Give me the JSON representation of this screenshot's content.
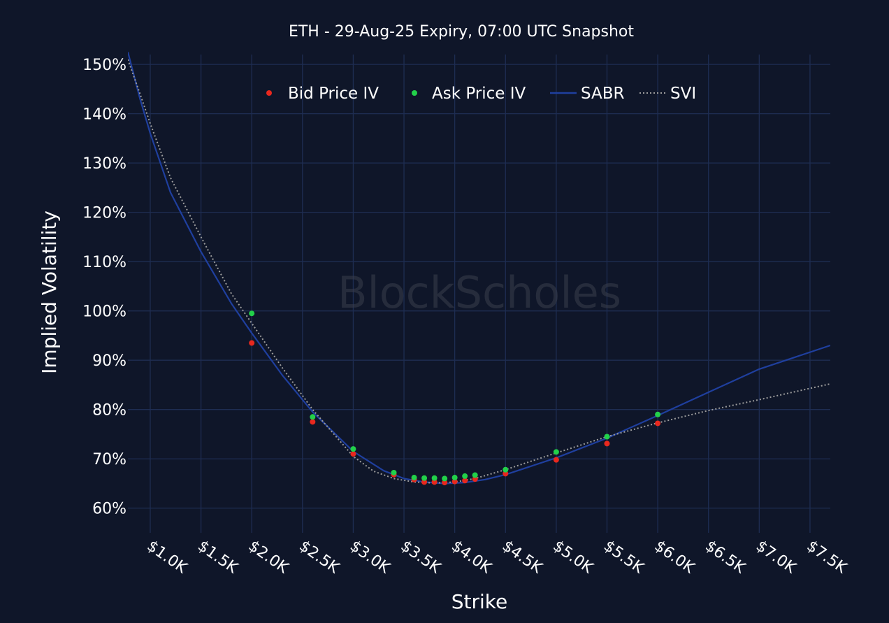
{
  "chart_data": {
    "type": "scatter",
    "title": "ETH - 29-Aug-25 Expiry, 07:00 UTC Snapshot",
    "xlabel": "Strike",
    "ylabel": "Implied Volatility",
    "xlim": [
      780,
      7700
    ],
    "ylim": [
      55,
      152
    ],
    "x_ticks": [
      1000,
      1500,
      2000,
      2500,
      3000,
      3500,
      4000,
      4500,
      5000,
      5500,
      6000,
      6500,
      7000,
      7500
    ],
    "x_tick_labels": [
      "$1.0K",
      "$1.5K",
      "$2.0K",
      "$2.5K",
      "$3.0K",
      "$3.5K",
      "$4.0K",
      "$4.5K",
      "$5.0K",
      "$5.5K",
      "$6.0K",
      "$6.5K",
      "$7.0K",
      "$7.5K"
    ],
    "y_ticks": [
      60,
      70,
      80,
      90,
      100,
      110,
      120,
      130,
      140,
      150
    ],
    "y_tick_labels": [
      "60%",
      "70%",
      "80%",
      "90%",
      "100%",
      "110%",
      "120%",
      "130%",
      "140%",
      "150%"
    ],
    "grid": true,
    "legend_position": "top-center",
    "watermark": "BlockScholes",
    "series": [
      {
        "name": "Bid Price IV",
        "kind": "scatter",
        "color": "#e8281e",
        "points": [
          [
            2000,
            93.5
          ],
          [
            2600,
            77.5
          ],
          [
            3000,
            71
          ],
          [
            3400,
            66.8
          ],
          [
            3600,
            65.8
          ],
          [
            3700,
            65.3
          ],
          [
            3800,
            65.3
          ],
          [
            3900,
            65.2
          ],
          [
            4000,
            65.4
          ],
          [
            4100,
            65.6
          ],
          [
            4200,
            65.9
          ],
          [
            4500,
            67
          ],
          [
            5000,
            69.8
          ],
          [
            5500,
            73.1
          ],
          [
            6000,
            77.2
          ]
        ]
      },
      {
        "name": "Ask Price IV",
        "kind": "scatter",
        "color": "#22d14a",
        "points": [
          [
            2000,
            99.5
          ],
          [
            2600,
            78.5
          ],
          [
            3000,
            72
          ],
          [
            3400,
            67.2
          ],
          [
            3600,
            66.2
          ],
          [
            3700,
            66.1
          ],
          [
            3800,
            66.1
          ],
          [
            3900,
            66
          ],
          [
            4000,
            66.2
          ],
          [
            4100,
            66.5
          ],
          [
            4200,
            66.7
          ],
          [
            4500,
            67.8
          ],
          [
            5000,
            71.4
          ],
          [
            5500,
            74.5
          ],
          [
            6000,
            79
          ]
        ]
      },
      {
        "name": "SABR",
        "kind": "line",
        "color": "#1f3f9e",
        "points": [
          [
            780,
            152.5
          ],
          [
            900,
            143
          ],
          [
            1000,
            136
          ],
          [
            1200,
            124
          ],
          [
            1500,
            112
          ],
          [
            1800,
            101.5
          ],
          [
            2000,
            95.5
          ],
          [
            2300,
            87
          ],
          [
            2600,
            79.5
          ],
          [
            3000,
            71.5
          ],
          [
            3300,
            67.6
          ],
          [
            3500,
            66
          ],
          [
            3700,
            65.3
          ],
          [
            3900,
            65
          ],
          [
            4100,
            65.2
          ],
          [
            4300,
            65.8
          ],
          [
            4500,
            66.8
          ],
          [
            5000,
            70.2
          ],
          [
            5500,
            74.2
          ],
          [
            6000,
            78.8
          ],
          [
            6500,
            83.5
          ],
          [
            7000,
            88.2
          ],
          [
            7700,
            93
          ]
        ]
      },
      {
        "name": "SVI",
        "kind": "line",
        "style": "dotted",
        "color": "#9c9c9c",
        "points": [
          [
            780,
            151
          ],
          [
            900,
            144
          ],
          [
            1000,
            138
          ],
          [
            1200,
            127
          ],
          [
            1500,
            115
          ],
          [
            1800,
            103.5
          ],
          [
            2000,
            97.5
          ],
          [
            2300,
            88.5
          ],
          [
            2600,
            80
          ],
          [
            3000,
            70.5
          ],
          [
            3200,
            67.5
          ],
          [
            3400,
            66
          ],
          [
            3600,
            65.3
          ],
          [
            3800,
            65.1
          ],
          [
            4000,
            65.3
          ],
          [
            4200,
            66
          ],
          [
            4500,
            67.8
          ],
          [
            5000,
            71.2
          ],
          [
            5500,
            74.5
          ],
          [
            6000,
            77.3
          ],
          [
            6500,
            79.8
          ],
          [
            7000,
            82
          ],
          [
            7700,
            85.2
          ]
        ]
      }
    ]
  },
  "colors": {
    "background": "#0f1629",
    "grid": "#1e2d52",
    "text": "#ffffff",
    "watermark": "#3a3f4c"
  }
}
